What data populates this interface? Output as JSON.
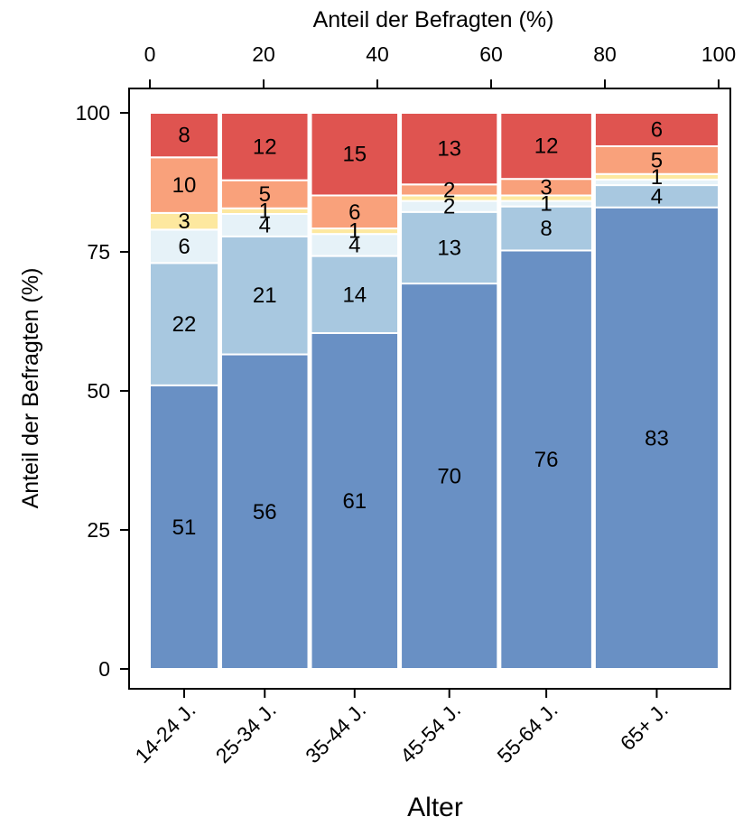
{
  "chart_data": {
    "type": "bar",
    "subtype": "mosaic (variable-width stacked bar)",
    "title": "",
    "xlabel": "Alter",
    "ylabel": "Anteil der Befragten (%)",
    "top_axis_label": "Anteil der Befragten (%)",
    "ylim": [
      0,
      100
    ],
    "yticks": [
      "0",
      "25",
      "50",
      "75",
      "100"
    ],
    "top_xlim": [
      0,
      100
    ],
    "top_xticks": [
      "0",
      "20",
      "40",
      "60",
      "80",
      "100"
    ],
    "grid": false,
    "legend": "none",
    "categories": [
      "14-24 J.",
      "25-34 J.",
      "35-44 J.",
      "45-54 J.",
      "55-64 J.",
      "65+ J."
    ],
    "category_share_pct": [
      12.3,
      15.8,
      15.8,
      17.5,
      16.6,
      22.0
    ],
    "series": [
      {
        "values": [
          51,
          56,
          61,
          70,
          76,
          83
        ],
        "labels": [
          "51",
          "56",
          "61",
          "70",
          "76",
          "83"
        ],
        "color": "#6990c4"
      },
      {
        "values": [
          22,
          21,
          14,
          13,
          8,
          4
        ],
        "labels": [
          "22",
          "21",
          "14",
          "13",
          "8",
          "4"
        ],
        "color": "#a8c8e0"
      },
      {
        "values": [
          6,
          4,
          4,
          2,
          1,
          1
        ],
        "labels": [
          "6",
          "4",
          "4",
          "2",
          "1",
          ""
        ],
        "color": "#e6f2f8"
      },
      {
        "values": [
          3,
          1,
          1,
          1,
          1,
          1
        ],
        "labels": [
          "3",
          "1",
          "1",
          "",
          "",
          "1"
        ],
        "color": "#fde89f"
      },
      {
        "values": [
          10,
          5,
          6,
          2,
          3,
          5
        ],
        "labels": [
          "10",
          "5",
          "6",
          "2",
          "3",
          "5"
        ],
        "color": "#f9a17b"
      },
      {
        "values": [
          8,
          12,
          15,
          13,
          12,
          6
        ],
        "labels": [
          "8",
          "12",
          "15",
          "13",
          "12",
          "6"
        ],
        "color": "#df5450"
      }
    ]
  }
}
